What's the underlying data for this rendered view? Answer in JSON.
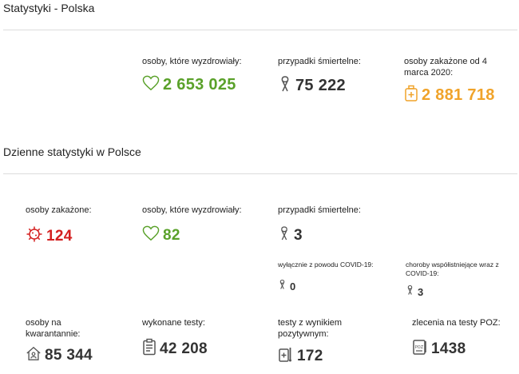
{
  "sections": {
    "poland_title": "Statystyki - Polska",
    "daily_title": "Dzienne statystyki w Polsce"
  },
  "totals": {
    "recovered": {
      "label": "osoby, które wyzdrowiały:",
      "value": "2 653 025",
      "icon": "heart-icon",
      "color": "#5aa12a"
    },
    "deaths": {
      "label": "przypadki śmiertelne:",
      "value": "75 222",
      "icon": "ribbon-icon",
      "color": "#333333"
    },
    "infected_since": {
      "label": "osoby zakażone od 4 marca 2020:",
      "value": "2 881 718",
      "icon": "medical-kit-icon",
      "color": "#f0a32a"
    }
  },
  "daily": {
    "infected": {
      "label": "osoby zakażone:",
      "value": "124",
      "icon": "virus-icon",
      "color": "#d42020"
    },
    "recovered": {
      "label": "osoby, które wyzdrowiały:",
      "value": "82",
      "icon": "heart-icon",
      "color": "#5aa12a"
    },
    "deaths": {
      "label": "przypadki śmiertelne:",
      "value": "3",
      "icon": "ribbon-icon"
    },
    "deaths_covid_only": {
      "label": "wyłącznie z powodu COVID-19:",
      "value": "0",
      "icon": "ribbon-icon"
    },
    "deaths_comorbid": {
      "label": "choroby współistniejące wraz z COVID-19:",
      "value": "3",
      "icon": "ribbon-icon"
    },
    "quarantine": {
      "label": "osoby na kwarantannie:",
      "value": "85 344",
      "icon": "house-icon"
    },
    "tests": {
      "label": "wykonane testy:",
      "value": "42 208",
      "icon": "clipboard-icon"
    },
    "positive_tests": {
      "label": "testy z wynikiem pozytywnym:",
      "value": "172",
      "icon": "test-tube-icon"
    },
    "poz_orders": {
      "label": "zlecenia na testy POZ:",
      "value": "1438",
      "icon": "poz-document-icon"
    }
  }
}
